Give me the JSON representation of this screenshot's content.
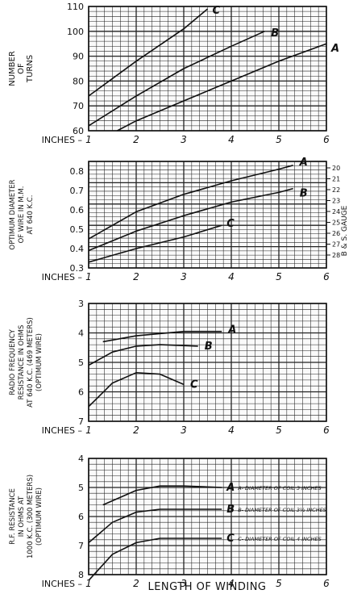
{
  "figure": {
    "xlabel": "LENGTH OF WINDING",
    "inches_label": "INCHES",
    "gauge_label": "B & S. GAUGE"
  },
  "chart_data": [
    {
      "type": "line",
      "ylabel": "NUMBER OF TURNS",
      "xlim": [
        1,
        6
      ],
      "ylim": [
        60,
        110
      ],
      "y_reversed": false,
      "x_ticks": [
        1,
        2,
        3,
        4,
        5,
        6
      ],
      "y_ticks": [
        60,
        70,
        80,
        90,
        100,
        110
      ],
      "grid": true,
      "series": [
        {
          "name": "A",
          "x": [
            1.6,
            2,
            3,
            4,
            5,
            6
          ],
          "y": [
            60,
            64,
            72,
            80,
            88,
            95
          ]
        },
        {
          "name": "B",
          "x": [
            1,
            2,
            3,
            4,
            4.7
          ],
          "y": [
            62,
            74,
            85,
            94,
            100
          ]
        },
        {
          "name": "C",
          "x": [
            1,
            2,
            3,
            3.5
          ],
          "y": [
            74,
            88,
            101,
            109
          ]
        }
      ]
    },
    {
      "type": "line",
      "ylabel": "OPTIMUM DIAMETER OF WIRE IN M.M. AT 640 K.C.",
      "xlim": [
        1,
        6
      ],
      "ylim": [
        0.3,
        0.85
      ],
      "y_reversed": false,
      "x_ticks": [
        1,
        2,
        3,
        4,
        5,
        6
      ],
      "y_ticks": [
        0.3,
        0.4,
        0.5,
        0.6,
        0.7,
        0.8
      ],
      "secondary_y_ticks": [
        "20",
        "21",
        "22",
        "23",
        "24",
        "25",
        "26",
        "27",
        "28"
      ],
      "grid": true,
      "series": [
        {
          "name": "A",
          "x": [
            1,
            2,
            3,
            4,
            5,
            5.3
          ],
          "y": [
            0.45,
            0.59,
            0.68,
            0.75,
            0.81,
            0.83
          ]
        },
        {
          "name": "B",
          "x": [
            1,
            2,
            3,
            4,
            5,
            5.3
          ],
          "y": [
            0.39,
            0.49,
            0.57,
            0.64,
            0.69,
            0.71
          ]
        },
        {
          "name": "C",
          "x": [
            1,
            2,
            3,
            3.8
          ],
          "y": [
            0.33,
            0.4,
            0.46,
            0.52
          ]
        }
      ]
    },
    {
      "type": "line",
      "ylabel": "RADIO FREQUENCY RESISTANCE IN OHMS AT 640 K.C. (469 METERS) (OPTIMUM WIRE)",
      "xlim": [
        1,
        6
      ],
      "ylim": [
        3,
        7
      ],
      "y_reversed": true,
      "x_ticks": [
        1,
        2,
        3,
        4,
        5,
        6
      ],
      "y_ticks": [
        3,
        4,
        5,
        6,
        7
      ],
      "grid": true,
      "series": [
        {
          "name": "A",
          "x": [
            1.3,
            2,
            3,
            3.8
          ],
          "y": [
            4.3,
            4.1,
            3.95,
            3.95
          ]
        },
        {
          "name": "B",
          "x": [
            1,
            1.5,
            2,
            2.5,
            3.3
          ],
          "y": [
            5.1,
            4.65,
            4.45,
            4.4,
            4.45
          ]
        },
        {
          "name": "C",
          "x": [
            1,
            1.5,
            2,
            2.5,
            3
          ],
          "y": [
            6.5,
            5.7,
            5.35,
            5.4,
            5.75
          ]
        }
      ]
    },
    {
      "type": "line",
      "ylabel": "R.F. RESISTANCE IN OHMS AT 1000 K.C. (300 METERS) (OPTIMUM WIRE)",
      "xlim": [
        1,
        6
      ],
      "ylim": [
        4,
        8
      ],
      "y_reversed": true,
      "x_ticks": [
        1,
        2,
        3,
        4,
        5,
        6
      ],
      "y_ticks": [
        4,
        5,
        6,
        7,
        8
      ],
      "grid": true,
      "series": [
        {
          "name": "A",
          "x": [
            1.3,
            2,
            2.5,
            3,
            3.8
          ],
          "y": [
            5.6,
            5.1,
            4.95,
            4.95,
            5
          ]
        },
        {
          "name": "B",
          "x": [
            1,
            1.5,
            2,
            2.5,
            3,
            3.8
          ],
          "y": [
            6.9,
            6.2,
            5.85,
            5.75,
            5.75,
            5.75
          ]
        },
        {
          "name": "C",
          "x": [
            1,
            1.5,
            2,
            2.5,
            3,
            3.8
          ],
          "y": [
            8.2,
            7.3,
            6.9,
            6.75,
            6.75,
            6.75
          ]
        }
      ],
      "annotations": [
        "A- DIAMETER OF COIL 3 INCHES",
        "B- DIAMETER OF COIL 3½ INCHES",
        "C- DIAMETER OF COIL 4 INCHES"
      ]
    }
  ]
}
